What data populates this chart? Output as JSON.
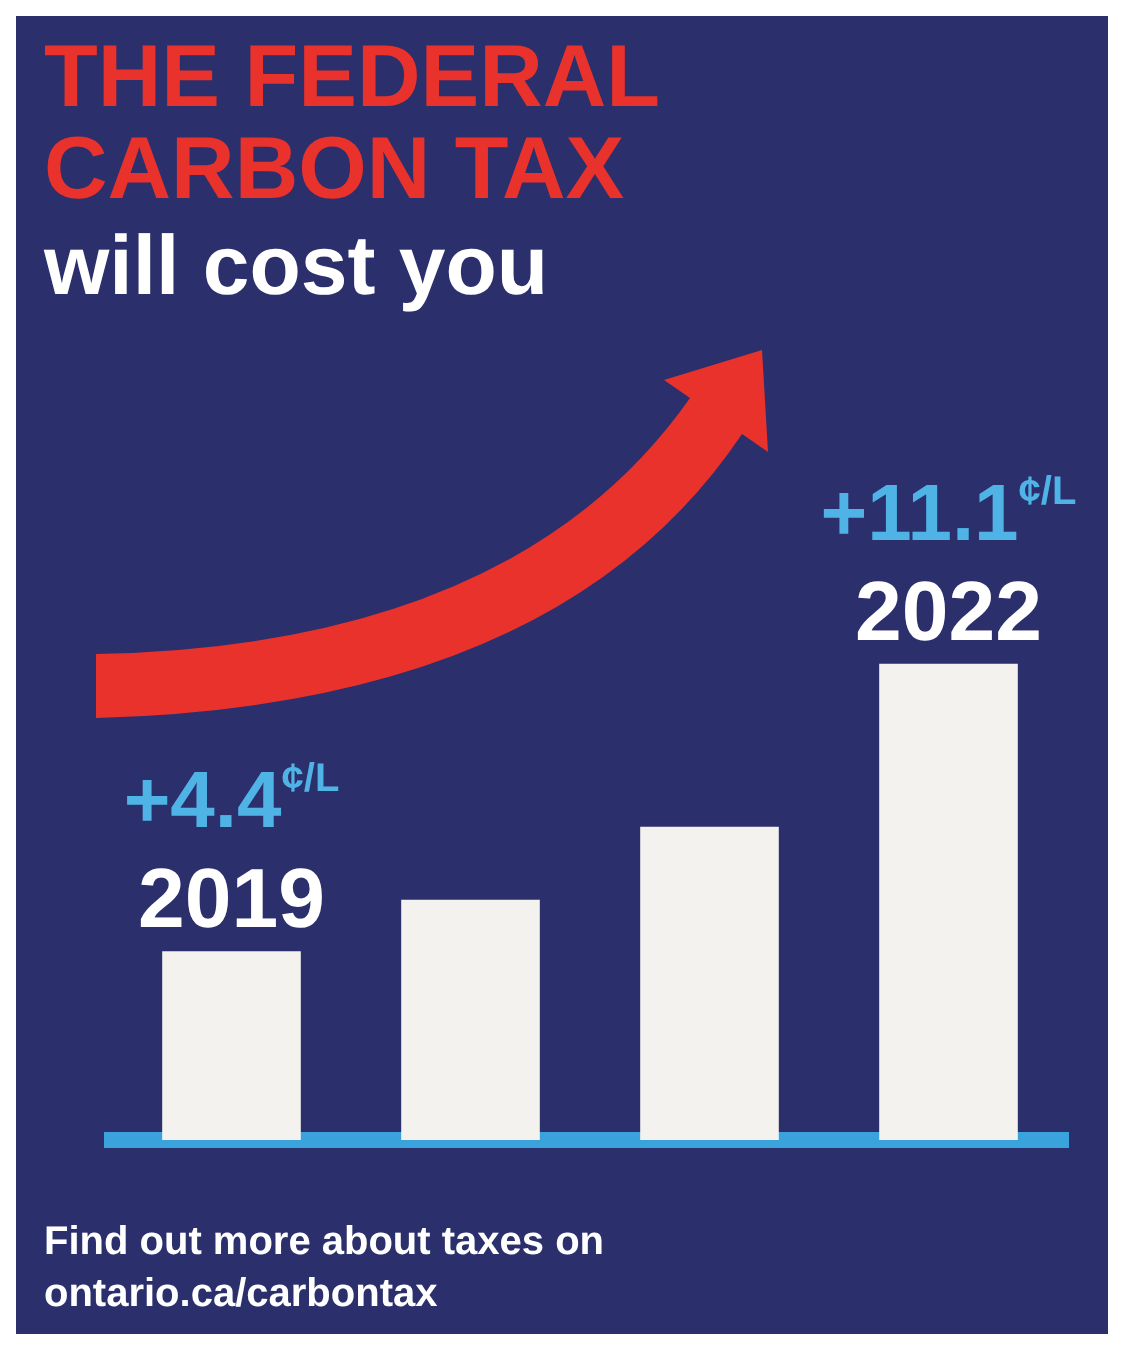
{
  "chart_data": {
    "type": "bar",
    "title": "THE FEDERAL CARBON TAX",
    "subtitle": "will cost you",
    "categories": [
      "2019",
      null,
      null,
      "2022"
    ],
    "values": [
      4.4,
      5.6,
      7.3,
      11.1
    ],
    "color": "#f4f2ee",
    "value_labels": [
      "+4.4$^{¢/L}$",
      null,
      null,
      "+11.1$^{¢/L}$"
    ],
    "grid": false,
    "legend": false,
    "annotations": [
      "Find out more about taxes on",
      "ontario.ca/carbontax"
    ]
  }
}
